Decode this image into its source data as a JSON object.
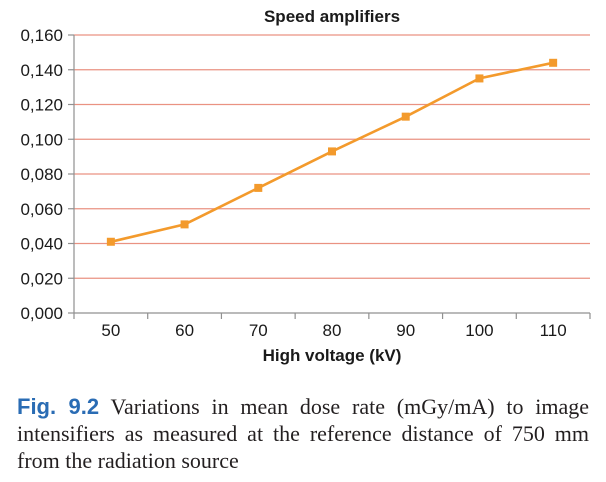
{
  "chart_data": {
    "type": "line",
    "title": "Speed amplifiers",
    "xlabel": "High voltage (kV)",
    "categories": [
      "50",
      "60",
      "70",
      "80",
      "90",
      "100",
      "110"
    ],
    "series": [
      {
        "values": [
          0.041,
          0.051,
          0.072,
          0.093,
          0.113,
          0.135,
          0.144
        ],
        "color": "#f39a2c",
        "marker": "square"
      }
    ],
    "ylim": [
      0,
      0.16
    ],
    "yticks": [
      0,
      0.02,
      0.04,
      0.06,
      0.08,
      0.1,
      0.12,
      0.14,
      0.16
    ],
    "ytick_labels": [
      "0,000",
      "0,020",
      "0,040",
      "0,060",
      "0,080",
      "0,100",
      "0,120",
      "0,140",
      "0,160"
    ],
    "grid": true,
    "grid_color": "#ea9282",
    "axis_color": "#909090",
    "legend": "none"
  },
  "caption": {
    "label": "Fig. 9.2",
    "text": "Variations in mean dose rate (mGy/mA) to image intensifiers as measured at the reference distance of 750 mm from the radiation source",
    "label_color": "#2a6cb4"
  }
}
